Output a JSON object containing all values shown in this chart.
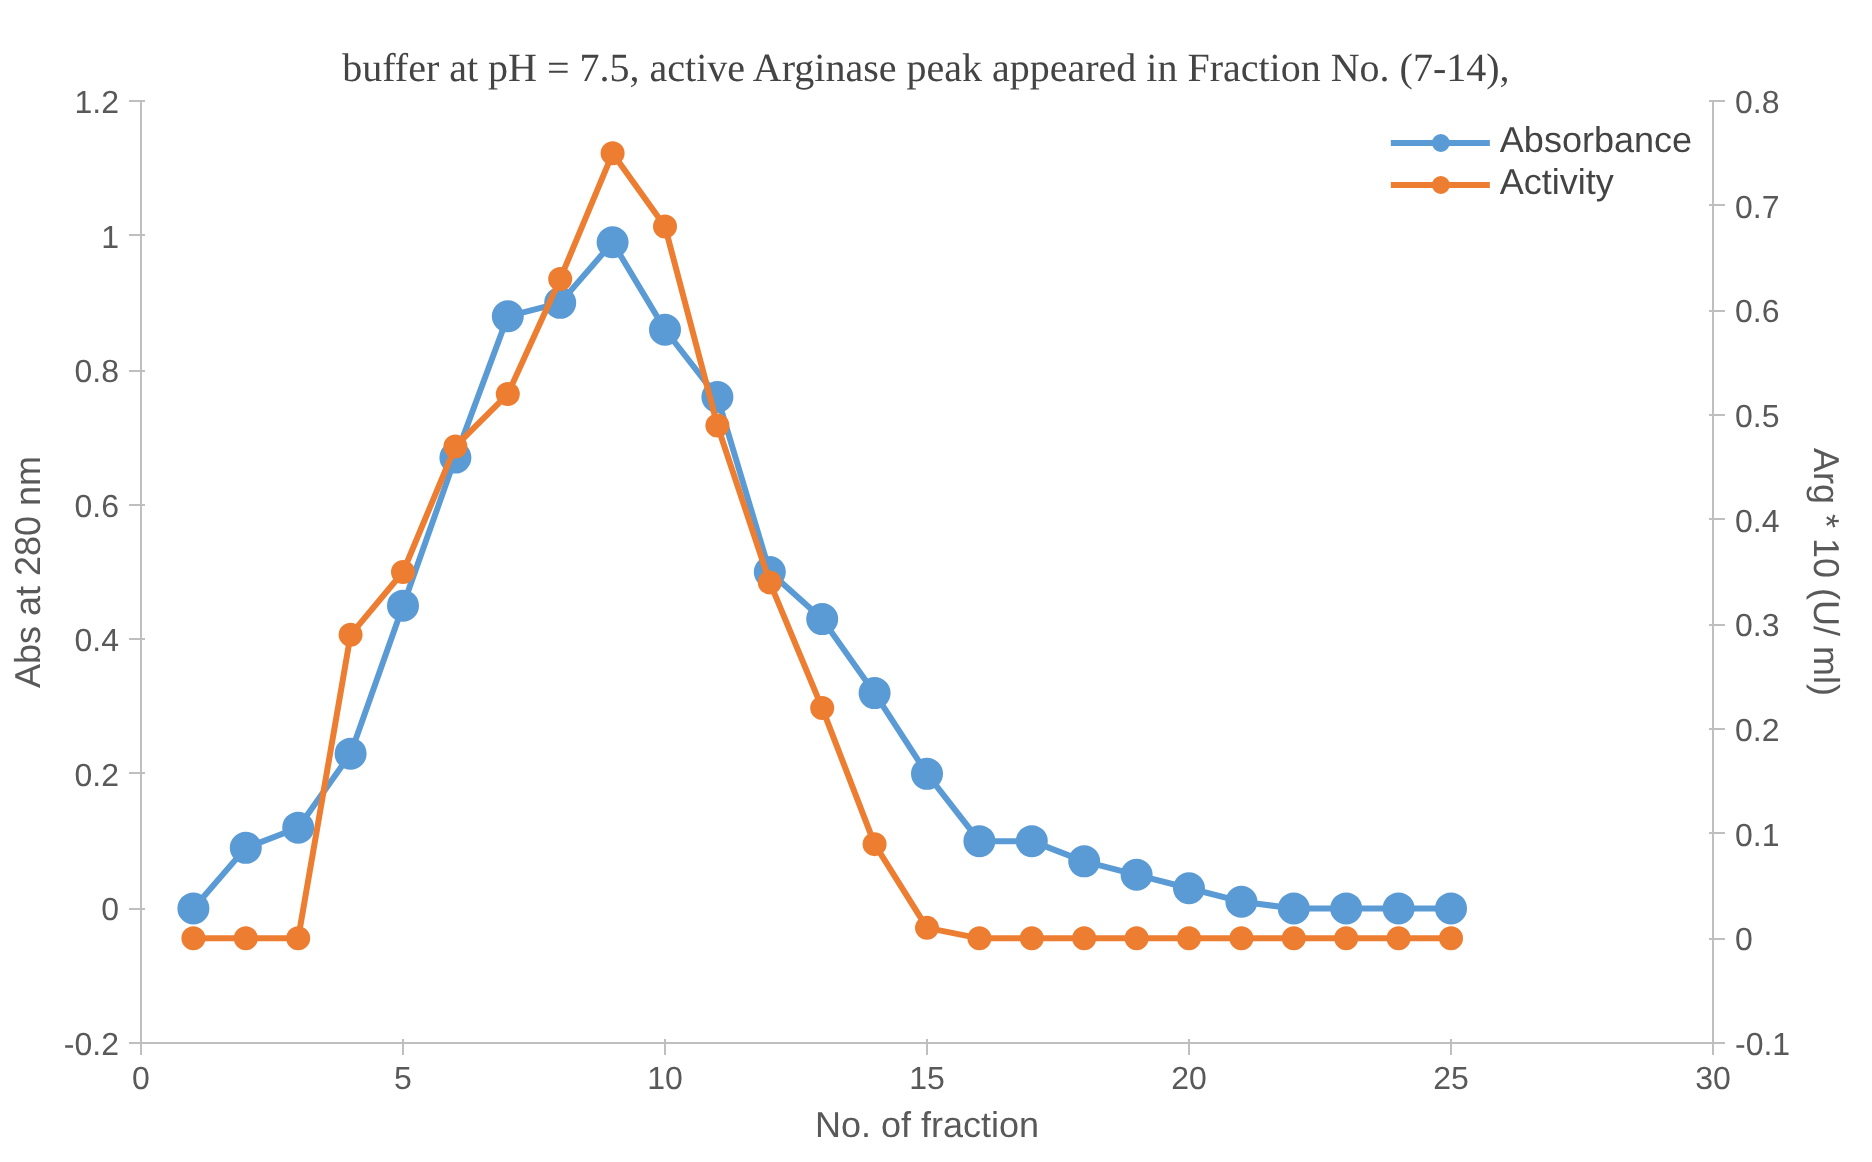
{
  "chart_data": {
    "type": "line",
    "xlabel": "No. of fraction",
    "ylabel": "Abs at 280 nm",
    "y2label": "Arg * 10 (U/ ml)",
    "annotations": [
      "buffer at pH = 7.5, active Arginase peak appeared in Fraction No. (7-14),"
    ],
    "x": [
      1,
      2,
      3,
      4,
      5,
      6,
      7,
      8,
      9,
      10,
      11,
      12,
      13,
      14,
      15,
      16,
      17,
      18,
      19,
      20,
      21,
      22,
      23,
      24,
      25
    ],
    "series": [
      {
        "name": "Absorbance",
        "color": "#5b9bd5",
        "values": [
          0,
          0.09,
          0.12,
          0.23,
          0.45,
          0.67,
          0.88,
          0.9,
          0.99,
          0.86,
          0.76,
          0.5,
          0.43,
          0.32,
          0.2,
          0.1,
          0.1,
          0.07,
          0.05,
          0.03,
          0.01,
          0,
          0,
          0,
          0
        ]
      },
      {
        "name": "Activity",
        "color": "#ed7d31",
        "axis": "y2",
        "values": [
          0,
          0,
          0,
          0.29,
          0.35,
          0.47,
          0.52,
          0.63,
          0.75,
          0.68,
          0.49,
          0.34,
          0.22,
          0.09,
          0.01,
          0,
          0,
          0,
          0,
          0,
          0,
          0,
          0,
          0,
          0
        ]
      }
    ],
    "xlim": [
      0,
      30
    ],
    "xticks": [
      0,
      5,
      10,
      15,
      20,
      25,
      30
    ],
    "ylim": [
      -0.2,
      1.2
    ],
    "yticks": [
      -0.2,
      0,
      0.2,
      0.4,
      0.6,
      0.8,
      1,
      1.2
    ],
    "y2lim": [
      -0.1,
      0.8
    ],
    "y2ticks": [
      -0.1,
      0,
      0.1,
      0.2,
      0.3,
      0.4,
      0.5,
      0.6,
      0.7,
      0.8
    ],
    "grid": false,
    "legend": "top right",
    "marker": "circle",
    "line_style": "solid"
  }
}
